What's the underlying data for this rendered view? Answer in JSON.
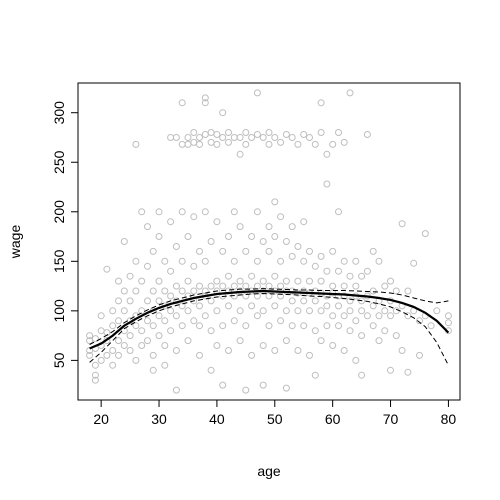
{
  "chart_data": {
    "type": "scatter",
    "xlabel": "age",
    "ylabel": "wage",
    "xlim": [
      16,
      82
    ],
    "ylim": [
      10,
      330
    ],
    "x_ticks": [
      20,
      30,
      40,
      50,
      60,
      70,
      80
    ],
    "y_ticks": [
      50,
      100,
      150,
      200,
      250,
      300
    ],
    "point_color": "#bebebe",
    "fit_color": "#000000",
    "points": [
      [
        18,
        70
      ],
      [
        18,
        60
      ],
      [
        18,
        75
      ],
      [
        18,
        55
      ],
      [
        19,
        62
      ],
      [
        19,
        45
      ],
      [
        19,
        72
      ],
      [
        19,
        30
      ],
      [
        19,
        35
      ],
      [
        20,
        50
      ],
      [
        20,
        65
      ],
      [
        20,
        80
      ],
      [
        20,
        95
      ],
      [
        21,
        55
      ],
      [
        21,
        78
      ],
      [
        21,
        70
      ],
      [
        21,
        142
      ],
      [
        22,
        60
      ],
      [
        22,
        85
      ],
      [
        22,
        45
      ],
      [
        22,
        100
      ],
      [
        23,
        70
      ],
      [
        23,
        90
      ],
      [
        23,
        110
      ],
      [
        23,
        55
      ],
      [
        23,
        130
      ],
      [
        24,
        80
      ],
      [
        24,
        100
      ],
      [
        24,
        65
      ],
      [
        24,
        120
      ],
      [
        24,
        170
      ],
      [
        25,
        90
      ],
      [
        25,
        75
      ],
      [
        25,
        110
      ],
      [
        25,
        135
      ],
      [
        25,
        60
      ],
      [
        26,
        95
      ],
      [
        26,
        85
      ],
      [
        26,
        120
      ],
      [
        26,
        150
      ],
      [
        26,
        50
      ],
      [
        26,
        268
      ],
      [
        27,
        100
      ],
      [
        27,
        80
      ],
      [
        27,
        130
      ],
      [
        27,
        200
      ],
      [
        27,
        65
      ],
      [
        28,
        110
      ],
      [
        28,
        90
      ],
      [
        28,
        145
      ],
      [
        28,
        70
      ],
      [
        28,
        185
      ],
      [
        29,
        100
      ],
      [
        29,
        120
      ],
      [
        29,
        85
      ],
      [
        29,
        160
      ],
      [
        29,
        55
      ],
      [
        29,
        40
      ],
      [
        30,
        110
      ],
      [
        30,
        95
      ],
      [
        30,
        130
      ],
      [
        30,
        75
      ],
      [
        30,
        175
      ],
      [
        30,
        200
      ],
      [
        31,
        105
      ],
      [
        31,
        120
      ],
      [
        31,
        90
      ],
      [
        31,
        150
      ],
      [
        31,
        65
      ],
      [
        31,
        45
      ],
      [
        32,
        115
      ],
      [
        32,
        100
      ],
      [
        32,
        140
      ],
      [
        32,
        80
      ],
      [
        32,
        190
      ],
      [
        32,
        275
      ],
      [
        33,
        110
      ],
      [
        33,
        125
      ],
      [
        33,
        95
      ],
      [
        33,
        165
      ],
      [
        33,
        60
      ],
      [
        33,
        275
      ],
      [
        33,
        20
      ],
      [
        34,
        120
      ],
      [
        34,
        105
      ],
      [
        34,
        150
      ],
      [
        34,
        85
      ],
      [
        34,
        200
      ],
      [
        34,
        310
      ],
      [
        34,
        268
      ],
      [
        35,
        115
      ],
      [
        35,
        130
      ],
      [
        35,
        100
      ],
      [
        35,
        175
      ],
      [
        35,
        70
      ],
      [
        35,
        275
      ],
      [
        35,
        268
      ],
      [
        36,
        120
      ],
      [
        36,
        110
      ],
      [
        36,
        145
      ],
      [
        36,
        90
      ],
      [
        36,
        195
      ],
      [
        36,
        280
      ],
      [
        36,
        270
      ],
      [
        37,
        125
      ],
      [
        37,
        105
      ],
      [
        37,
        160
      ],
      [
        37,
        85
      ],
      [
        37,
        55
      ],
      [
        37,
        268
      ],
      [
        37,
        275
      ],
      [
        38,
        120
      ],
      [
        38,
        115
      ],
      [
        38,
        150
      ],
      [
        38,
        95
      ],
      [
        38,
        200
      ],
      [
        38,
        310
      ],
      [
        38,
        315
      ],
      [
        38,
        278
      ],
      [
        39,
        125
      ],
      [
        39,
        110
      ],
      [
        39,
        170
      ],
      [
        39,
        80
      ],
      [
        39,
        40
      ],
      [
        39,
        270
      ],
      [
        39,
        280
      ],
      [
        40,
        120
      ],
      [
        40,
        130
      ],
      [
        40,
        100
      ],
      [
        40,
        190
      ],
      [
        40,
        65
      ],
      [
        40,
        278
      ],
      [
        40,
        268
      ],
      [
        41,
        125
      ],
      [
        41,
        115
      ],
      [
        41,
        160
      ],
      [
        41,
        85
      ],
      [
        41,
        25
      ],
      [
        41,
        275
      ],
      [
        41,
        300
      ],
      [
        42,
        120
      ],
      [
        42,
        135
      ],
      [
        42,
        105
      ],
      [
        42,
        175
      ],
      [
        42,
        60
      ],
      [
        42,
        280
      ],
      [
        42,
        270
      ],
      [
        43,
        125
      ],
      [
        43,
        115
      ],
      [
        43,
        150
      ],
      [
        43,
        90
      ],
      [
        43,
        200
      ],
      [
        43,
        275
      ],
      [
        44,
        120
      ],
      [
        44,
        130
      ],
      [
        44,
        100
      ],
      [
        44,
        185
      ],
      [
        44,
        70
      ],
      [
        44,
        275
      ],
      [
        44,
        258
      ],
      [
        45,
        125
      ],
      [
        45,
        115
      ],
      [
        45,
        160
      ],
      [
        45,
        85
      ],
      [
        45,
        20
      ],
      [
        45,
        280
      ],
      [
        45,
        268
      ],
      [
        46,
        120
      ],
      [
        46,
        135
      ],
      [
        46,
        105
      ],
      [
        46,
        175
      ],
      [
        46,
        55
      ],
      [
        46,
        275
      ],
      [
        47,
        125
      ],
      [
        47,
        115
      ],
      [
        47,
        150
      ],
      [
        47,
        95
      ],
      [
        47,
        200
      ],
      [
        47,
        320
      ],
      [
        47,
        278
      ],
      [
        48,
        120
      ],
      [
        48,
        130
      ],
      [
        48,
        100
      ],
      [
        48,
        170
      ],
      [
        48,
        65
      ],
      [
        48,
        25
      ],
      [
        48,
        275
      ],
      [
        49,
        125
      ],
      [
        49,
        115
      ],
      [
        49,
        160
      ],
      [
        49,
        85
      ],
      [
        49,
        185
      ],
      [
        49,
        280
      ],
      [
        49,
        268
      ],
      [
        50,
        120
      ],
      [
        50,
        135
      ],
      [
        50,
        105
      ],
      [
        50,
        175
      ],
      [
        50,
        60
      ],
      [
        50,
        210
      ],
      [
        50,
        275
      ],
      [
        51,
        125
      ],
      [
        51,
        115
      ],
      [
        51,
        150
      ],
      [
        51,
        90
      ],
      [
        51,
        195
      ],
      [
        51,
        270
      ],
      [
        52,
        120
      ],
      [
        52,
        130
      ],
      [
        52,
        100
      ],
      [
        52,
        170
      ],
      [
        52,
        70
      ],
      [
        52,
        22
      ],
      [
        52,
        278
      ],
      [
        53,
        120
      ],
      [
        53,
        110
      ],
      [
        53,
        155
      ],
      [
        53,
        85
      ],
      [
        53,
        185
      ],
      [
        53,
        275
      ],
      [
        54,
        118
      ],
      [
        54,
        130
      ],
      [
        54,
        100
      ],
      [
        54,
        165
      ],
      [
        54,
        60
      ],
      [
        54,
        268
      ],
      [
        55,
        120
      ],
      [
        55,
        110
      ],
      [
        55,
        150
      ],
      [
        55,
        85
      ],
      [
        55,
        190
      ],
      [
        55,
        278
      ],
      [
        56,
        118
      ],
      [
        56,
        130
      ],
      [
        56,
        100
      ],
      [
        56,
        160
      ],
      [
        56,
        55
      ],
      [
        56,
        275
      ],
      [
        57,
        120
      ],
      [
        57,
        110
      ],
      [
        57,
        145
      ],
      [
        57,
        80
      ],
      [
        57,
        35
      ],
      [
        57,
        268
      ],
      [
        58,
        118
      ],
      [
        58,
        130
      ],
      [
        58,
        100
      ],
      [
        58,
        155
      ],
      [
        58,
        70
      ],
      [
        58,
        310
      ],
      [
        58,
        280
      ],
      [
        59,
        115
      ],
      [
        59,
        105
      ],
      [
        59,
        140
      ],
      [
        59,
        85
      ],
      [
        59,
        228
      ],
      [
        59,
        258
      ],
      [
        60,
        118
      ],
      [
        60,
        125
      ],
      [
        60,
        95
      ],
      [
        60,
        160
      ],
      [
        60,
        65
      ],
      [
        60,
        268
      ],
      [
        61,
        115
      ],
      [
        61,
        105
      ],
      [
        61,
        140
      ],
      [
        61,
        85
      ],
      [
        61,
        280
      ],
      [
        61,
        200
      ],
      [
        62,
        115
      ],
      [
        62,
        125
      ],
      [
        62,
        95
      ],
      [
        62,
        150
      ],
      [
        62,
        60
      ],
      [
        62,
        270
      ],
      [
        63,
        110
      ],
      [
        63,
        100
      ],
      [
        63,
        135
      ],
      [
        63,
        80
      ],
      [
        63,
        320
      ],
      [
        64,
        115
      ],
      [
        64,
        125
      ],
      [
        64,
        90
      ],
      [
        64,
        150
      ],
      [
        64,
        50
      ],
      [
        65,
        110
      ],
      [
        65,
        100
      ],
      [
        65,
        135
      ],
      [
        65,
        75
      ],
      [
        65,
        35
      ],
      [
        66,
        115
      ],
      [
        66,
        95
      ],
      [
        66,
        140
      ],
      [
        66,
        278
      ],
      [
        67,
        105
      ],
      [
        67,
        120
      ],
      [
        67,
        85
      ],
      [
        67,
        160
      ],
      [
        68,
        110
      ],
      [
        68,
        95
      ],
      [
        68,
        150
      ],
      [
        68,
        70
      ],
      [
        69,
        100
      ],
      [
        69,
        125
      ],
      [
        69,
        80
      ],
      [
        70,
        110
      ],
      [
        70,
        95
      ],
      [
        70,
        130
      ],
      [
        70,
        40
      ],
      [
        71,
        100
      ],
      [
        71,
        120
      ],
      [
        71,
        75
      ],
      [
        72,
        105
      ],
      [
        72,
        188
      ],
      [
        72,
        60
      ],
      [
        73,
        95
      ],
      [
        73,
        120
      ],
      [
        73,
        38
      ],
      [
        74,
        100
      ],
      [
        74,
        148
      ],
      [
        75,
        90
      ],
      [
        75,
        55
      ],
      [
        76,
        95
      ],
      [
        76,
        178
      ],
      [
        77,
        85
      ],
      [
        78,
        100
      ],
      [
        80,
        95
      ],
      [
        80,
        80
      ],
      [
        80,
        88
      ]
    ],
    "fit": {
      "x": [
        18,
        20,
        22,
        24,
        26,
        28,
        30,
        32,
        34,
        36,
        38,
        40,
        42,
        44,
        46,
        48,
        50,
        52,
        54,
        56,
        58,
        60,
        62,
        64,
        66,
        68,
        70,
        72,
        74,
        76,
        78,
        80
      ],
      "y": [
        62,
        67,
        75,
        85,
        92,
        98,
        103,
        107,
        110,
        113,
        115,
        117,
        118,
        119,
        119.5,
        120,
        119.5,
        119,
        118.5,
        118,
        117.5,
        117,
        116.5,
        115.5,
        114.5,
        113,
        111,
        108,
        104,
        98,
        90,
        78
      ],
      "upper": [
        66,
        72,
        79,
        88,
        95,
        101,
        106,
        110,
        113,
        116,
        118,
        120,
        121,
        122,
        122,
        122.5,
        122,
        121.5,
        121,
        121,
        120.5,
        120.5,
        120.5,
        120,
        119.5,
        119,
        118,
        116,
        113,
        110,
        108,
        110
      ],
      "lower": [
        48,
        58,
        70,
        82,
        89,
        95,
        100,
        104,
        107,
        110,
        112,
        114,
        115,
        116,
        117,
        117.5,
        117,
        116.5,
        116,
        115,
        114.5,
        113.5,
        112.5,
        111,
        109.5,
        107,
        104,
        99,
        93,
        84,
        68,
        45
      ]
    }
  }
}
